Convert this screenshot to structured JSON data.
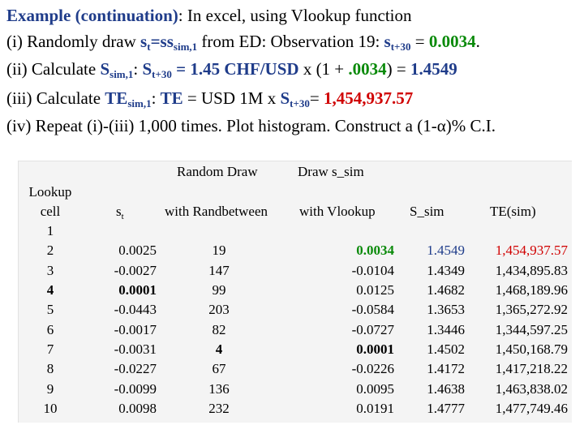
{
  "lines": {
    "l1_bold": "Example (continuation)",
    "l1_rest": ": In excel, using Vlookup function",
    "l2_a": "(i) Randomly draw ",
    "l2_s": "s",
    "l2_s_sub": "t",
    "l2_eq": "=s",
    "l2_sim_sub": "sim,1",
    "l2_b": " from ED: Observation 19: ",
    "l2_s2": "s",
    "l2_t30": "t+30",
    "l2_eq2": " = ",
    "l2_val": "0.0034",
    "l2_end": ".",
    "l3_a": "(ii) Calculate ",
    "l3_S": "S",
    "l3_S_sub": "sim,1",
    "l3_colon": ":  ",
    "l3_S2": "S",
    "l3_t30": "t+30",
    "l3_eq": " = 1.45 CHF/USD",
    "l3_x": " x (1 + ",
    "l3_val": ".0034",
    "l3_close": ") = ",
    "l3_res": "1.4549",
    "l4_a": "(iii) Calculate ",
    "l4_TE": "TE",
    "l4_TE_sub": "sim,1",
    "l4_colon": ":  ",
    "l4_TE2": "TE",
    "l4_mid": " = USD 1M x ",
    "l4_S": "S",
    "l4_t30": "t+30",
    "l4_eq": "= ",
    "l4_res": "1,454,937.57",
    "l5": "(iv) Repeat (i)-(iii) 1,000 times. Plot histogram. Construct a (1-α)% C.I."
  },
  "table": {
    "header_top": {
      "random_draw": "Random Draw",
      "draw_s_sim": "Draw s_sim"
    },
    "header": {
      "lookup": "Lookup",
      "cell": "cell",
      "st": "s",
      "st_sub": "t",
      "randbetween": "with Randbetween",
      "vlookup": "with Vlookup",
      "s_sim": "S_sim",
      "te_sim": "TE(sim)"
    },
    "rows": [
      {
        "cell": "1",
        "st": "",
        "draw": "",
        "s_sim": "",
        "S_sim": "",
        "TE": ""
      },
      {
        "cell": "2",
        "st": "0.0025",
        "draw": "19",
        "s_sim": "0.0034",
        "S_sim": "1.4549",
        "TE": "1,454,937.57"
      },
      {
        "cell": "3",
        "st": "-0.0027",
        "draw": "147",
        "s_sim": "-0.0104",
        "S_sim": "1.4349",
        "TE": "1,434,895.83"
      },
      {
        "cell": "4",
        "st": "0.0001",
        "draw": "99",
        "s_sim": "0.0125",
        "S_sim": "1.4682",
        "TE": "1,468,189.96"
      },
      {
        "cell": "5",
        "st": "-0.0443",
        "draw": "203",
        "s_sim": "-0.0584",
        "S_sim": "1.3653",
        "TE": "1,365,272.92"
      },
      {
        "cell": "6",
        "st": "-0.0017",
        "draw": "82",
        "s_sim": "-0.0727",
        "S_sim": "1.3446",
        "TE": "1,344,597.25"
      },
      {
        "cell": "7",
        "st": "-0.0031",
        "draw": "4",
        "s_sim": "0.0001",
        "S_sim": "1.4502",
        "TE": "1,450,168.79"
      },
      {
        "cell": "8",
        "st": "-0.0227",
        "draw": "67",
        "s_sim": "-0.0226",
        "S_sim": "1.4172",
        "TE": "1,417,218.22"
      },
      {
        "cell": "9",
        "st": "-0.0099",
        "draw": "136",
        "s_sim": "0.0095",
        "S_sim": "1.4638",
        "TE": "1,463,838.02"
      },
      {
        "cell": "10",
        "st": "0.0098",
        "draw": "232",
        "s_sim": "0.0191",
        "S_sim": "1.4777",
        "TE": "1,477,749.46"
      }
    ]
  },
  "colors": {
    "blue": "#1f3c8a",
    "green": "#0a8a0a",
    "red": "#d00000"
  }
}
